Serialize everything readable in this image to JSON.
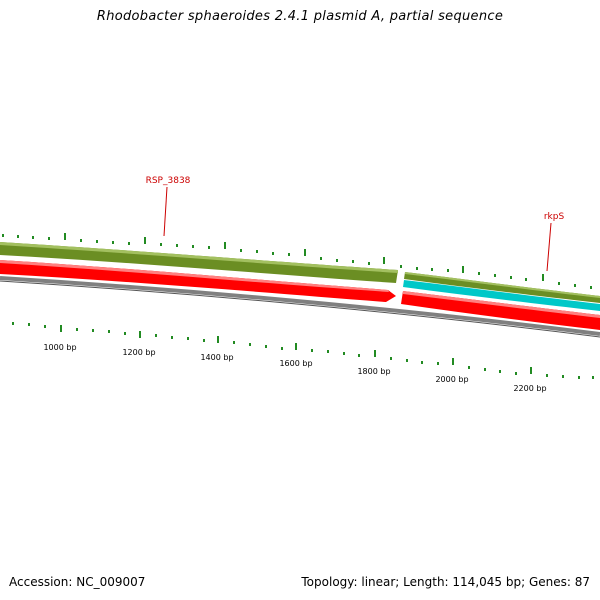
{
  "title": "Rhodobacter sphaeroides 2.4.1 plasmid A, partial sequence",
  "footer": {
    "accession": "Accession: NC_009007",
    "summary": "Topology: linear; Length: 114,045 bp; Genes: 87"
  },
  "gene_labels": [
    {
      "id": "RSP_3838",
      "text": "RSP_3838"
    },
    {
      "id": "rkpS",
      "text": "rkpS"
    }
  ],
  "scale_labels": [
    "1000 bp",
    "1200 bp",
    "1400 bp",
    "1600 bp",
    "1800 bp",
    "2000 bp",
    "2200 bp"
  ],
  "colors": {
    "forward_gene": "#6b8e23",
    "reverse_gene": "#ff0000",
    "ncrna": "#00c8c8",
    "backbone": "#808080",
    "ticks": "#228b22",
    "label_line": "#cc0000"
  }
}
